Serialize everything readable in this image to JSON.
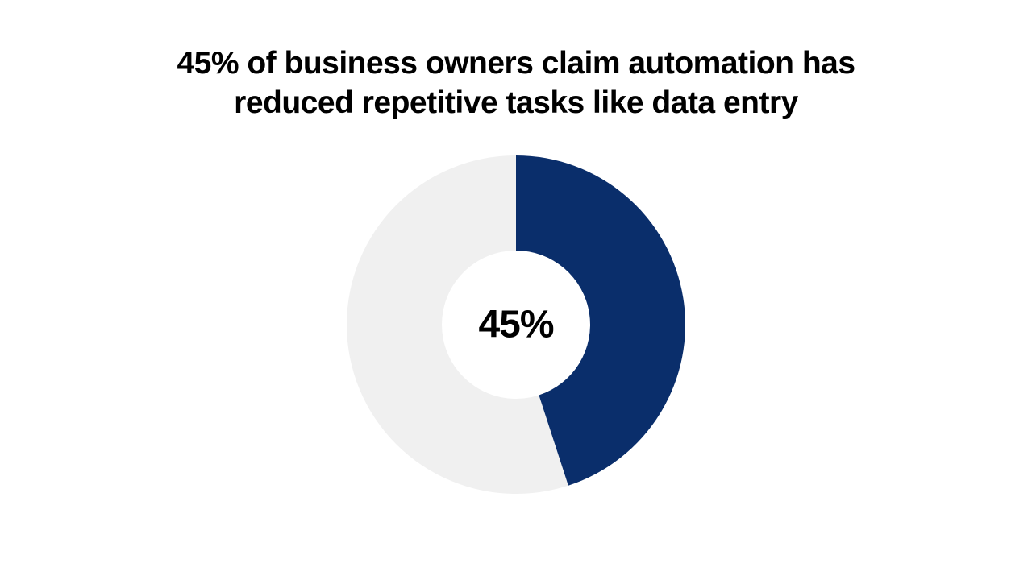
{
  "title": "45% of business owners claim automation has reduced repetitive tasks like data entry",
  "title_fontsize": 39,
  "title_color": "#000000",
  "chart": {
    "type": "donut",
    "percentage": 45,
    "center_label": "45%",
    "center_label_fontsize": 48,
    "center_label_color": "#000000",
    "filled_color": "#0a2e6b",
    "unfilled_color": "#f0f0f0",
    "background_color": "#ffffff",
    "outer_radius": 210,
    "inner_radius": 92,
    "size": 440,
    "start_angle_deg": 0,
    "direction": "clockwise"
  }
}
